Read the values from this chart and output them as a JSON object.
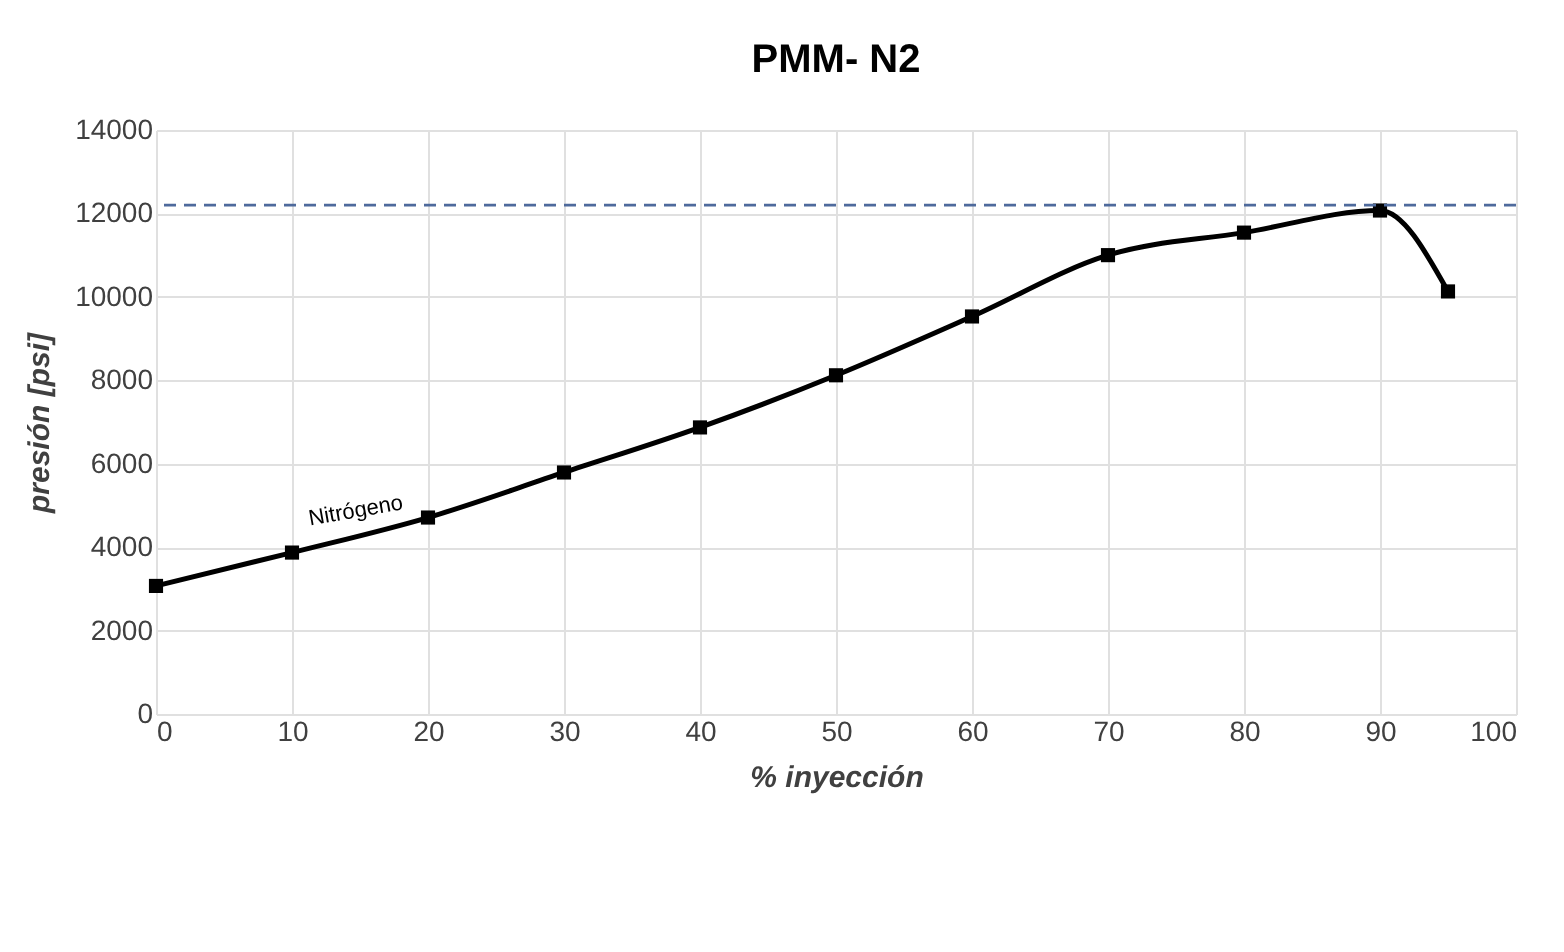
{
  "chart_data": {
    "type": "line",
    "title": "PMM- N2",
    "xlabel": "% inyección",
    "ylabel": "presión [psi]",
    "x": [
      0,
      10,
      20,
      30,
      40,
      50,
      60,
      70,
      80,
      90,
      95
    ],
    "series": [
      {
        "name": "Nitrógeno",
        "color": "#000000",
        "values": [
          3070,
          3870,
          4710,
          5790,
          6870,
          8120,
          9530,
          11000,
          11540,
          12070,
          10130
        ]
      }
    ],
    "xlim": [
      0,
      100
    ],
    "xticks": [
      0,
      10,
      20,
      30,
      40,
      50,
      60,
      70,
      80,
      90,
      100
    ],
    "ylim": [
      0,
      14000
    ],
    "yticks": [
      0,
      2000,
      4000,
      6000,
      8000,
      10000,
      12000,
      14000
    ],
    "grid": true,
    "marker": "square",
    "line_style": "solid",
    "ref_lines": [
      {
        "axis": "y",
        "value": 12200,
        "color": "#4e6a9c",
        "line_style": "dashed"
      }
    ]
  }
}
